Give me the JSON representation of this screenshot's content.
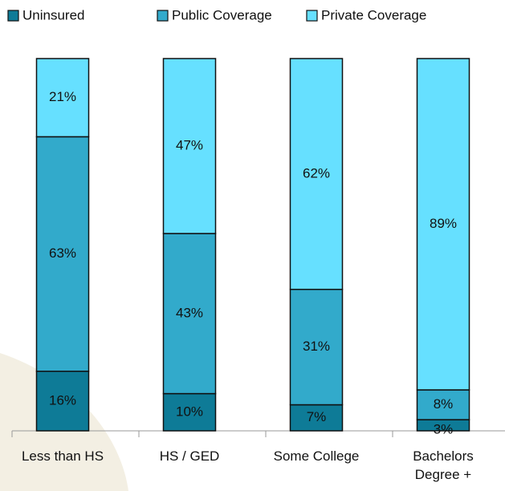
{
  "chart_data": {
    "type": "stacked-bar",
    "categories": [
      "Less than HS",
      "HS / GED",
      "Some College",
      "Bachelors Degree +"
    ],
    "series": [
      {
        "name": "Uninsured",
        "color": "#0e7b97",
        "values": [
          16,
          10,
          7,
          3
        ],
        "value_labels": [
          "16%",
          "10%",
          "7%",
          "3%"
        ]
      },
      {
        "name": "Public Coverage",
        "color": "#32aacb",
        "values": [
          63,
          43,
          31,
          8
        ],
        "value_labels": [
          "63%",
          "43%",
          "31%",
          "8%"
        ]
      },
      {
        "name": "Private Coverage",
        "color": "#66e0ff",
        "values": [
          21,
          47,
          62,
          89
        ],
        "value_labels": [
          "21%",
          "47%",
          "62%",
          "89%"
        ]
      }
    ],
    "ylim": [
      0,
      100
    ]
  }
}
